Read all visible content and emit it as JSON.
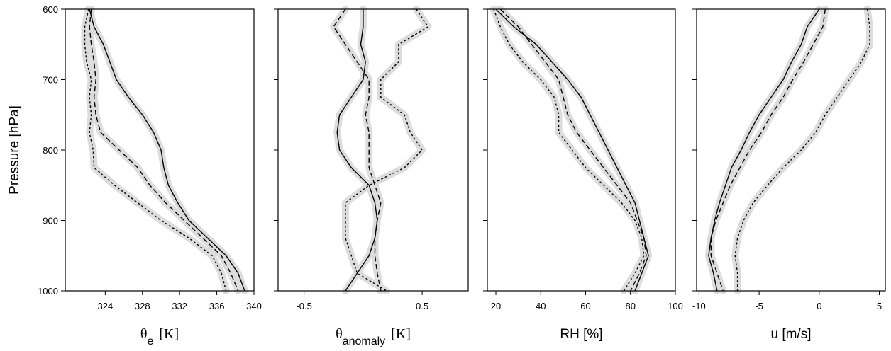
{
  "chart_data": [
    {
      "type": "line",
      "x_label": [
        "θ",
        "e",
        "[K]"
      ],
      "y_label": "Pressure [hPa]",
      "y": [
        600,
        625,
        650,
        675,
        700,
        725,
        750,
        775,
        800,
        825,
        850,
        875,
        900,
        925,
        950,
        975,
        1000
      ],
      "xlim": [
        319.7,
        340
      ],
      "xticks": [
        324,
        328,
        332,
        336,
        340
      ],
      "ylim": [
        1000,
        600
      ],
      "yticks": [
        600,
        700,
        800,
        900,
        1000
      ],
      "band_color": "#dcdcdc",
      "series": [
        {
          "color": "#000",
          "style": "solid",
          "values": [
            322.3,
            322.8,
            323.8,
            324.5,
            325.2,
            326.5,
            328,
            329.2,
            330,
            330.3,
            330.8,
            331.8,
            333,
            335,
            337,
            338.3,
            339
          ]
        },
        {
          "color": "#000",
          "style": "dashed",
          "values": [
            322.5,
            322.3,
            322.5,
            322.8,
            323,
            322.8,
            323,
            323.5,
            325.5,
            327.5,
            328.8,
            330.5,
            332.5,
            334.5,
            336.5,
            337.5,
            338.3
          ]
        },
        {
          "color": "#000",
          "style": "dotted",
          "values": [
            322.2,
            321.8,
            321.8,
            322,
            322.5,
            322.3,
            322.5,
            322.3,
            322.7,
            322.8,
            325,
            327.5,
            330,
            333,
            335.5,
            336.5,
            337
          ]
        }
      ]
    },
    {
      "type": "line",
      "x_label": [
        "θ",
        "anomaly",
        "[K]"
      ],
      "y": [
        600,
        625,
        650,
        675,
        700,
        725,
        750,
        775,
        800,
        825,
        850,
        875,
        900,
        925,
        950,
        975,
        1000
      ],
      "xlim": [
        -0.72,
        0.89
      ],
      "xticks": [
        -0.5,
        0.5
      ],
      "ylim": [
        1000,
        600
      ],
      "band_color": "#dcdcdc",
      "series": [
        {
          "color": "#000",
          "style": "solid",
          "values": [
            0,
            0,
            -0.02,
            0.02,
            0,
            -0.1,
            -0.2,
            -0.22,
            -0.2,
            -0.1,
            0.05,
            0.1,
            0.12,
            0.1,
            0.05,
            -0.05,
            -0.15
          ]
        },
        {
          "color": "#000",
          "style": "dashed",
          "values": [
            -0.15,
            -0.25,
            -0.15,
            -0.05,
            0.05,
            0.05,
            0.02,
            0.05,
            0.05,
            0.05,
            0.1,
            0.15,
            0.12,
            0.1,
            0.1,
            0.12,
            0.15
          ]
        },
        {
          "color": "#000",
          "style": "dotted",
          "values": [
            0.45,
            0.55,
            0.3,
            0.3,
            0.15,
            0.15,
            0.35,
            0.4,
            0.5,
            0.35,
            0.05,
            -0.15,
            -0.15,
            -0.15,
            -0.1,
            -0.05,
            0.2
          ]
        }
      ]
    },
    {
      "type": "line",
      "x_label": "RH [%]",
      "y": [
        600,
        625,
        650,
        675,
        700,
        725,
        750,
        775,
        800,
        825,
        850,
        875,
        900,
        925,
        950,
        975,
        1000
      ],
      "xlim": [
        16.2,
        100
      ],
      "xticks": [
        20,
        40,
        60,
        80,
        100
      ],
      "ylim": [
        1000,
        600
      ],
      "band_color": "#dcdcdc",
      "series": [
        {
          "color": "#000",
          "style": "solid",
          "values": [
            20,
            28,
            38,
            45,
            52,
            58,
            62,
            66,
            70,
            74,
            78,
            82,
            84,
            86,
            88,
            85,
            82
          ]
        },
        {
          "color": "#000",
          "style": "dashed",
          "values": [
            22,
            30,
            36,
            42,
            48,
            50,
            52,
            56,
            62,
            68,
            74,
            80,
            83,
            86,
            87,
            84,
            80
          ]
        },
        {
          "color": "#000",
          "style": "dotted",
          "values": [
            19,
            22,
            26,
            32,
            40,
            46,
            48,
            48,
            54,
            60,
            68,
            76,
            82,
            85,
            86,
            82,
            77
          ]
        }
      ]
    },
    {
      "type": "line",
      "x_label": "u [m/s]",
      "y": [
        600,
        625,
        650,
        675,
        700,
        725,
        750,
        775,
        800,
        825,
        850,
        875,
        900,
        925,
        950,
        975,
        1000
      ],
      "xlim": [
        -10.2,
        5.5
      ],
      "xticks": [
        -10,
        -5,
        0,
        5
      ],
      "ylim": [
        1000,
        600
      ],
      "band_color": "#dcdcdc",
      "series": [
        {
          "color": "#000",
          "style": "solid",
          "values": [
            0,
            -1,
            -1.5,
            -2.3,
            -3,
            -4,
            -5,
            -5.8,
            -6.5,
            -7.3,
            -7.8,
            -8.3,
            -8.7,
            -9,
            -9.2,
            -8.8,
            -8.5
          ]
        },
        {
          "color": "#000",
          "style": "dashed",
          "values": [
            0.5,
            0.3,
            -0.5,
            -1.3,
            -2.2,
            -3,
            -4,
            -4.8,
            -5.8,
            -6.6,
            -7.4,
            -8,
            -8.6,
            -9,
            -9,
            -8.5,
            -8
          ]
        },
        {
          "color": "#000",
          "style": "dotted",
          "values": [
            4,
            4.2,
            4.2,
            3.5,
            2.5,
            1.5,
            0.5,
            -0.3,
            -1.5,
            -3,
            -4.3,
            -5.5,
            -6.3,
            -6.8,
            -7,
            -6.8,
            -6.8
          ]
        }
      ]
    }
  ]
}
